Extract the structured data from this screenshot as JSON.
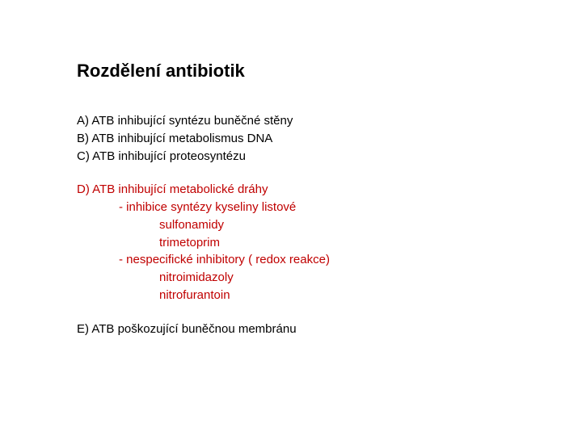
{
  "title": "Rozdělení antibiotik",
  "colors": {
    "background": "#ffffff",
    "text": "#000000",
    "highlight": "#c00000"
  },
  "fonts": {
    "title_size": 22,
    "body_size": 15,
    "family": "Verdana"
  },
  "groupA": {
    "a": "A) ATB inhibující syntézu buněčné stěny",
    "b": "B) ATB inhibující metabolismus DNA",
    "c": "C) ATB inhibující proteosyntézu"
  },
  "groupD": {
    "head": "D) ATB inhibující metabolické dráhy",
    "l1": "- inhibice syntézy kyseliny listové",
    "l2": "sulfonamidy",
    "l3": "trimetoprim",
    "l4": "- nespecifické inhibitory ( redox reakce)",
    "l5": "nitroimidazoly",
    "l6": "nitrofurantoin"
  },
  "groupE": {
    "e": "E) ATB poškozující buněčnou membránu"
  }
}
